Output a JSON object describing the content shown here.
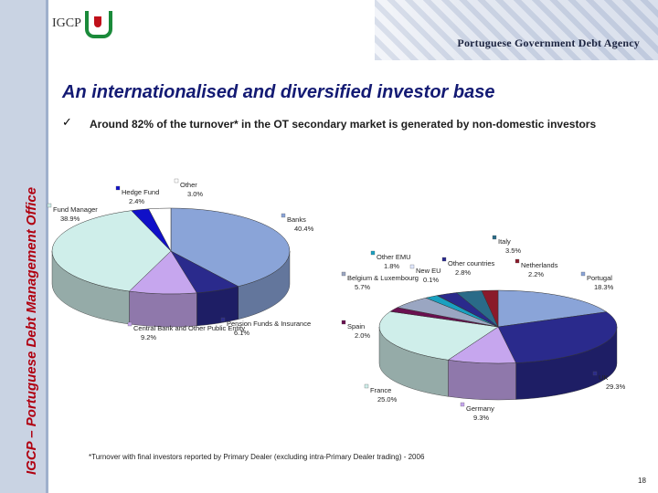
{
  "sidebar": {
    "text": "IGCP – Portuguese Debt Management Office"
  },
  "header": {
    "logo_text": "IGCP",
    "agency": "Portuguese Government Debt Agency"
  },
  "title": "An internationalised and diversified investor base",
  "bullet": {
    "check": "✓",
    "text": "Around 82% of the turnover* in the OT secondary market is generated by non-domestic investors"
  },
  "colors": {
    "sidebar_text": "#b00010",
    "title": "#131a73",
    "pie_palette": [
      "#8aa4d8",
      "#2a2a8c",
      "#c6a6ee",
      "#54446e",
      "#cfeeea",
      "#1010c8",
      "#ffffff"
    ]
  },
  "chart_data": [
    {
      "type": "pie",
      "title": "",
      "series": [
        {
          "label": "Banks",
          "value": 40.4,
          "value_text": "40.4%",
          "color": "#8aa4d8"
        },
        {
          "label": "Pension Funds & Insurance",
          "value": 6.1,
          "value_text": "6.1%",
          "color": "#2a2a8c"
        },
        {
          "label": "Central Bank and Other Public Entity",
          "value": 9.2,
          "value_text": "9.2%",
          "color": "#c6a6ee"
        },
        {
          "label": "Fund Manager",
          "value": 38.9,
          "value_text": "38.9%",
          "color": "#cfeeea"
        },
        {
          "label": "Hedge Fund",
          "value": 2.4,
          "value_text": "2.4%",
          "color": "#1010c8"
        },
        {
          "label": "Other",
          "value": 3.0,
          "value_text": "3.0%",
          "color": "#ffffff"
        }
      ]
    },
    {
      "type": "pie",
      "title": "",
      "series": [
        {
          "label": "Portugal",
          "value": 18.3,
          "value_text": "18.3%",
          "color": "#8aa4d8"
        },
        {
          "label": "UK",
          "value": 29.3,
          "value_text": "29.3%",
          "color": "#2a2a8c"
        },
        {
          "label": "Germany",
          "value": 9.3,
          "value_text": "9.3%",
          "color": "#c6a6ee"
        },
        {
          "label": "France",
          "value": 25.0,
          "value_text": "25.0%",
          "color": "#cfeeea"
        },
        {
          "label": "Spain",
          "value": 2.0,
          "value_text": "2.0%",
          "color": "#6a1050"
        },
        {
          "label": "Belgium & Luxembourg",
          "value": 5.7,
          "value_text": "5.7%",
          "color": "#9aa6c2"
        },
        {
          "label": "Other EMU",
          "value": 1.8,
          "value_text": "1.8%",
          "color": "#1aa0c0"
        },
        {
          "label": "New EU",
          "value": 0.1,
          "value_text": "0.1%",
          "color": "#e0e8ff"
        },
        {
          "label": "Other countries",
          "value": 2.8,
          "value_text": "2.8%",
          "color": "#2a2a8c"
        },
        {
          "label": "Italy",
          "value": 3.5,
          "value_text": "3.5%",
          "color": "#2a6b88"
        },
        {
          "label": "Netherlands",
          "value": 2.2,
          "value_text": "2.2%",
          "color": "#8a1a2a"
        }
      ]
    }
  ],
  "footnote": "*Turnover with final investors reported by Primary Dealer (excluding intra-Primary Dealer trading) - 2006",
  "page_number": "18"
}
